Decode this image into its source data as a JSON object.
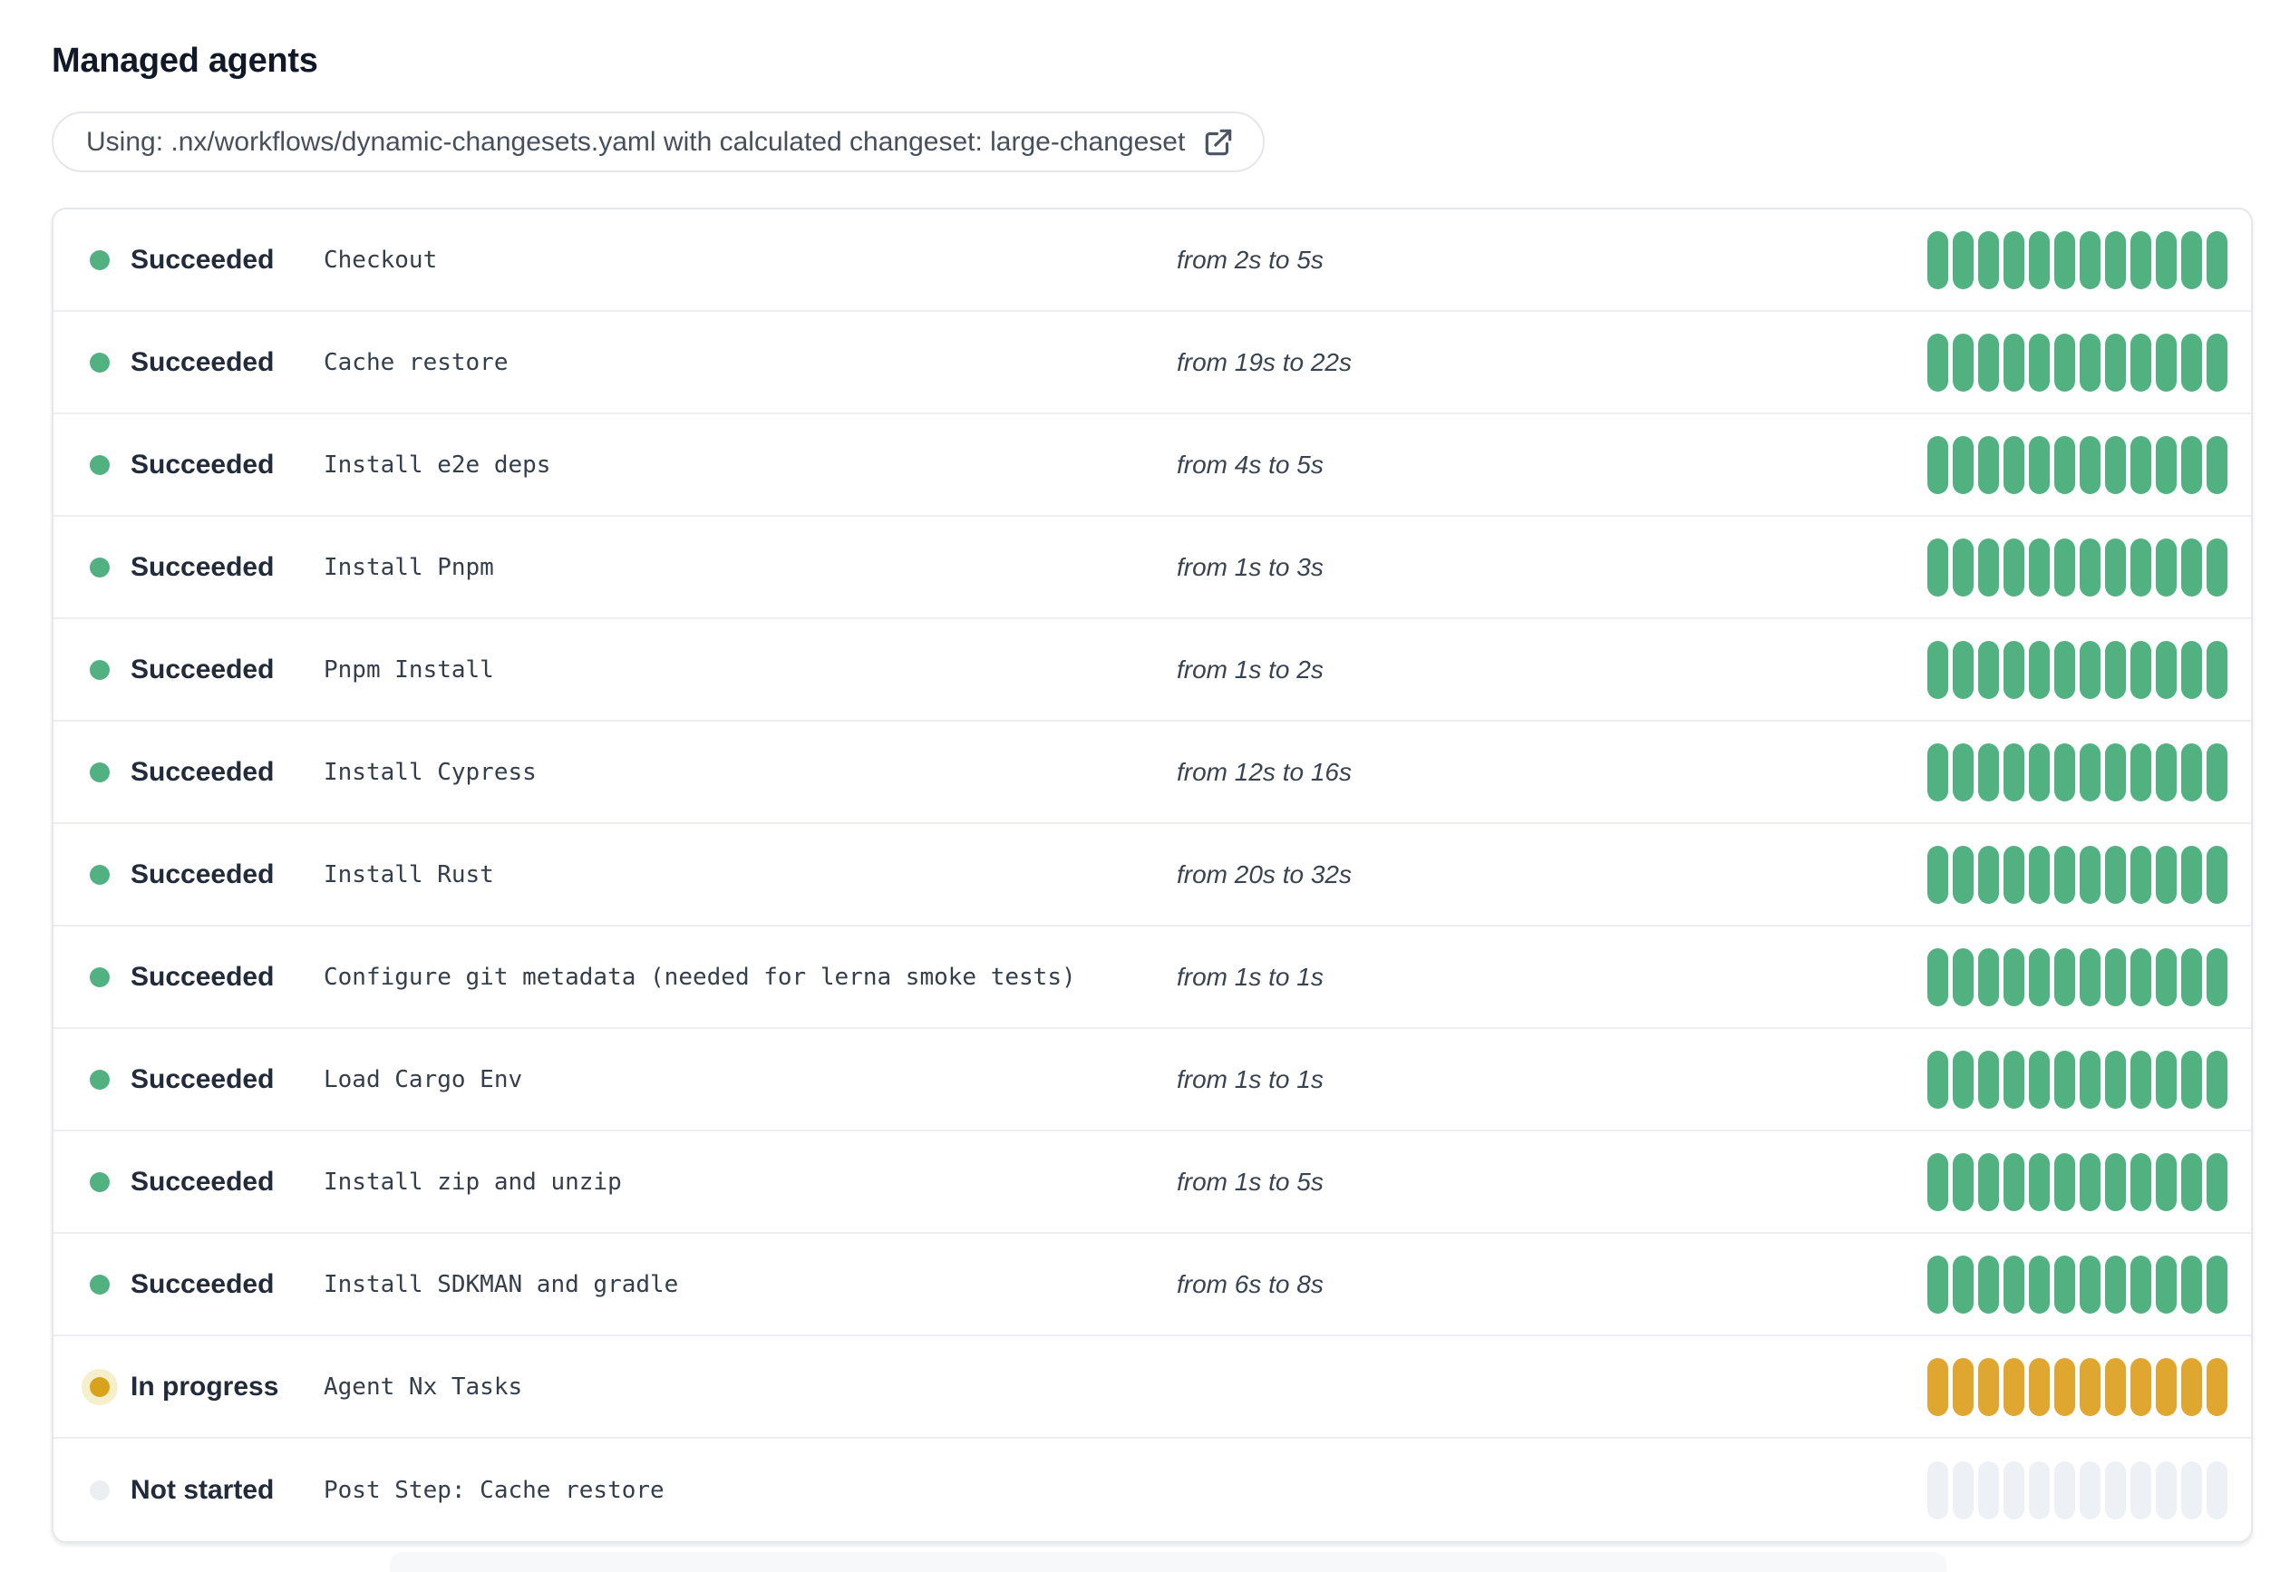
{
  "page": {
    "title": "Managed agents"
  },
  "banner": {
    "prefix": "Using:",
    "detail": ".nx/workflows/dynamic-changesets.yaml with calculated changeset: large-changeset",
    "icon": "external-link-icon"
  },
  "colors": {
    "succeeded_bar": "#52B181",
    "succeeded_dot": "#52B181",
    "in_progress_bar": "#DFA72F",
    "in_progress_dot": "#D9A21B",
    "in_progress_halo": "#F6EFCB",
    "not_started_bar": "#EDF1F5",
    "not_started_dot": "#ECEFF2"
  },
  "bar": {
    "segments_per_row": 12
  },
  "rows": [
    {
      "status": "Succeeded",
      "state": "succeeded",
      "step": "Checkout",
      "duration": "from 2s to 5s"
    },
    {
      "status": "Succeeded",
      "state": "succeeded",
      "step": "Cache restore",
      "duration": "from 19s to 22s"
    },
    {
      "status": "Succeeded",
      "state": "succeeded",
      "step": "Install e2e deps",
      "duration": "from 4s to 5s"
    },
    {
      "status": "Succeeded",
      "state": "succeeded",
      "step": "Install Pnpm",
      "duration": "from 1s to 3s"
    },
    {
      "status": "Succeeded",
      "state": "succeeded",
      "step": "Pnpm Install",
      "duration": "from 1s to 2s"
    },
    {
      "status": "Succeeded",
      "state": "succeeded",
      "step": "Install Cypress",
      "duration": "from 12s to 16s"
    },
    {
      "status": "Succeeded",
      "state": "succeeded",
      "step": "Install Rust",
      "duration": "from 20s to 32s"
    },
    {
      "status": "Succeeded",
      "state": "succeeded",
      "step": "Configure git metadata (needed for lerna smoke tests)",
      "duration": "from 1s to 1s"
    },
    {
      "status": "Succeeded",
      "state": "succeeded",
      "step": "Load Cargo Env",
      "duration": "from 1s to 1s"
    },
    {
      "status": "Succeeded",
      "state": "succeeded",
      "step": "Install zip and unzip",
      "duration": "from 1s to 5s"
    },
    {
      "status": "Succeeded",
      "state": "succeeded",
      "step": "Install SDKMAN and gradle",
      "duration": "from 6s to 8s"
    },
    {
      "status": "In progress",
      "state": "in-progress",
      "step": "Agent Nx Tasks",
      "duration": ""
    },
    {
      "status": "Not started",
      "state": "not-started",
      "step": "Post Step: Cache restore",
      "duration": ""
    }
  ]
}
